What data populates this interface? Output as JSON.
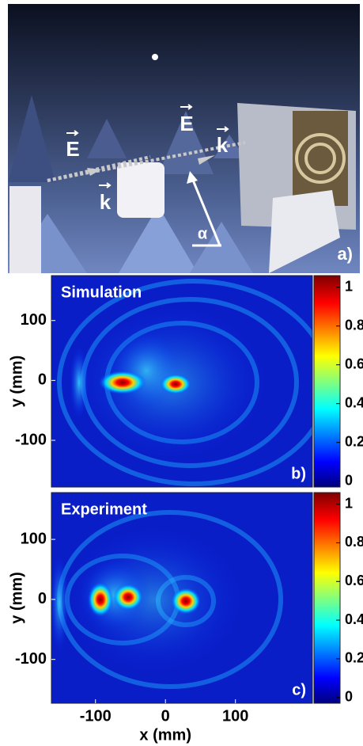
{
  "photo": {
    "labels": [
      "E",
      "k",
      "E",
      "k",
      "α"
    ],
    "panel_label": "a)"
  },
  "chart_data": [
    {
      "type": "heatmap",
      "title": "Simulation",
      "panel_label": "b)",
      "ylabel": "y (mm)",
      "xlim": [
        -163,
        210
      ],
      "ylim": [
        -178,
        175
      ],
      "yticks": [
        -100,
        0,
        100
      ],
      "colorbar": {
        "colormap": "jet",
        "lim": [
          -0.03,
          1.06
        ],
        "ticks": [
          0,
          0.2,
          0.4,
          0.6,
          0.8,
          1
        ]
      }
    },
    {
      "type": "heatmap",
      "title": "Experiment",
      "panel_label": "c)",
      "ylabel": "y (mm)",
      "xlabel": "x (mm)",
      "xlim": [
        -163,
        210
      ],
      "ylim": [
        -173,
        178
      ],
      "yticks": [
        -100,
        0,
        100
      ],
      "xticks": [
        -100,
        0,
        100
      ],
      "colorbar": {
        "colormap": "jet",
        "lim": [
          -0.03,
          1.06
        ],
        "ticks": [
          0,
          0.2,
          0.4,
          0.6,
          0.8,
          1
        ]
      }
    }
  ]
}
